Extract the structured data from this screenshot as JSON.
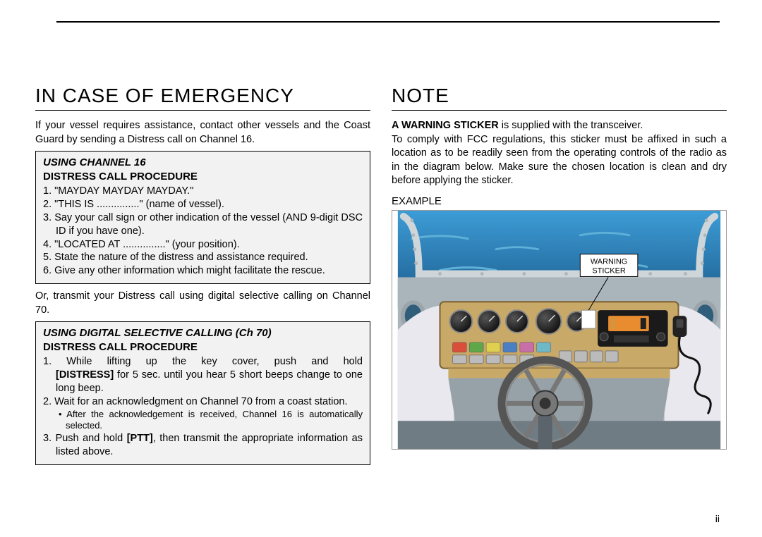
{
  "left": {
    "title": "IN CASE OF EMERGENCY",
    "intro": "If your vessel requires assistance, contact other vessels and the Coast Guard by sending a Distress call on Channel 16.",
    "box1": {
      "title_italic": "USING CHANNEL 16",
      "subtitle": "DISTRESS CALL PROCEDURE",
      "items": [
        "1. \"MAYDAY MAYDAY MAYDAY.\"",
        "2. \"THIS IS ...............\" (name of vessel).",
        "3. Say your call sign or other indication of the vessel (AND 9-digit DSC ID if you have one).",
        "4. \"LOCATED AT ...............\" (your position).",
        "5. State the nature of the distress and assistance required.",
        "6. Give any other information which might facilitate the rescue."
      ]
    },
    "between": "Or, transmit your Distress call using digital selective calling on Channel 70.",
    "box2": {
      "title_italic": "USING DIGITAL SELECTIVE CALLING (Ch 70)",
      "subtitle": "DISTRESS CALL PROCEDURE",
      "item1_pre": "1. While lifting up the key cover, push and hold ",
      "item1_bold": "[DISTRESS]",
      "item1_post": " for 5 sec. until you hear 5 short beeps change to one long beep.",
      "item2": "2. Wait for an acknowledgment on Channel 70 from a coast station.",
      "item2_note": "• After the acknowledgement is received, Channel 16 is automatically selected.",
      "item3_pre": "3. Push and hold ",
      "item3_bold": "[PTT]",
      "item3_post": ", then transmit the appropriate information as listed above."
    }
  },
  "right": {
    "title": "NOTE",
    "para_bold": "A WARNING STICKER",
    "para_rest": " is supplied with the transceiver.\nTo comply with FCC regulations, this sticker must be affixed in such a location as to be readily seen from the operating controls of the radio as in the diagram below. Make sure the chosen location is clean and dry before applying the sticker.",
    "example_label": "EXAMPLE",
    "diagram": {
      "sky_color": "#2b7fb8",
      "sky_gradient_top": "#3d9cd6",
      "sky_gradient_bot": "#1a5a8a",
      "hull_color": "#e8e8ee",
      "hull_shadow": "#c0c0c8",
      "interior_color": "#aab5bb",
      "floor_color": "#6f7c84",
      "panel_color": "#c9a968",
      "panel_outline": "#7a6030",
      "gauge_face": "#2a2a2a",
      "gauge_ring": "#888",
      "radio_body": "#1a1a1a",
      "radio_face": "#e88c2f",
      "mic_cord": "#222",
      "wheel_color": "#555",
      "wheel_spoke": "#777",
      "rivet_color": "#b0b8bd",
      "porthole_ring": "#9aa4aa",
      "porthole_glass": "#2f5d7a",
      "callout_bg": "#ffffff",
      "callout_border": "#000000",
      "callout_line1": "WARNING",
      "callout_line2": "STICKER",
      "buttons": [
        "#d94f3a",
        "#5fa84a",
        "#e0d050",
        "#4a7fc4",
        "#c86fa8",
        "#6fb8c8"
      ]
    }
  },
  "page_number": "ii"
}
